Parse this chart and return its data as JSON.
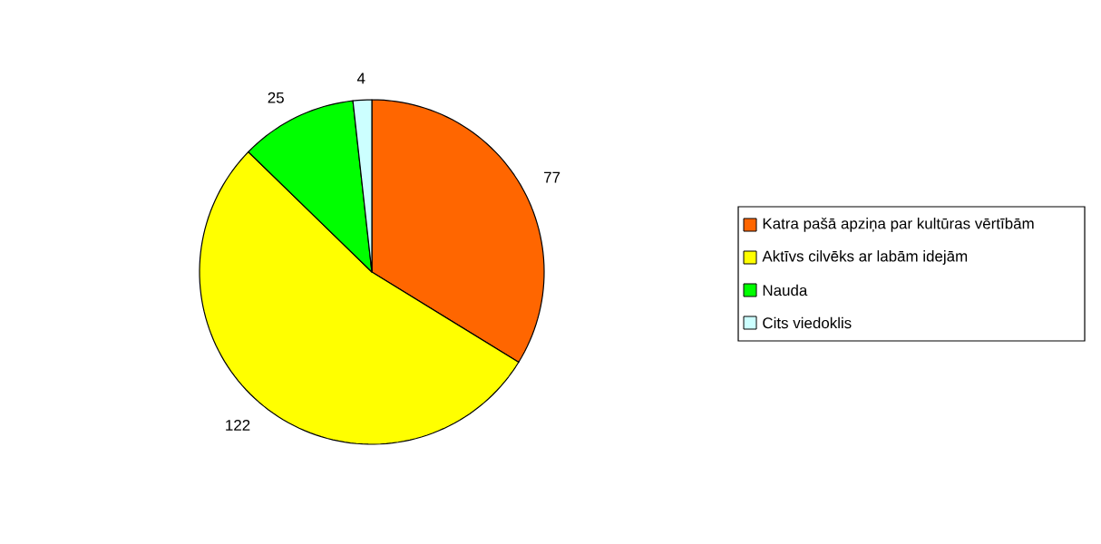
{
  "chart_data": {
    "type": "pie",
    "categories": [
      "Katra pašā apziņa par kultūras vērtībām",
      "Aktīvs cilvēks ar labām idejām",
      "Nauda",
      "Cits viedoklis"
    ],
    "values": [
      77,
      122,
      25,
      4
    ],
    "colors": [
      "#ff6600",
      "#ffff00",
      "#00ff00",
      "#ccffff"
    ],
    "data_labels": true,
    "legend": "right"
  }
}
